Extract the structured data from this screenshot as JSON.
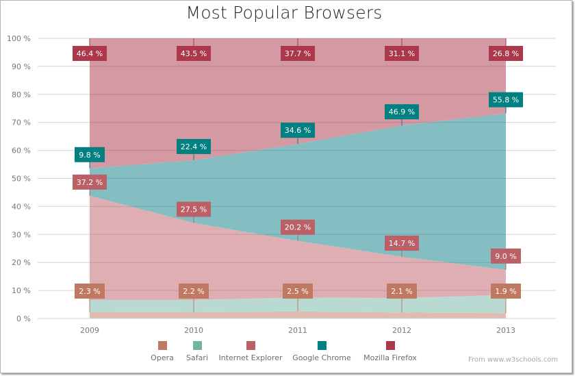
{
  "title": "Most Popular Browsers",
  "credit": "From www.w3schools.com",
  "y_ticks": [
    "0 %",
    "10 %",
    "20 %",
    "30 %",
    "40 %",
    "50 %",
    "60 %",
    "70 %",
    "80 %",
    "90 %",
    "100 %"
  ],
  "x_ticks": [
    "2009",
    "2010",
    "2011",
    "2012",
    "2013"
  ],
  "legend": [
    {
      "name": "Opera",
      "color": "#bf7862"
    },
    {
      "name": "Safari",
      "color": "#72b4a2"
    },
    {
      "name": "Internet Explorer",
      "color": "#bb6067"
    },
    {
      "name": "Google Chrome",
      "color": "#008080"
    },
    {
      "name": "Mozilla Firefox",
      "color": "#ab384b"
    }
  ],
  "chart_data": {
    "type": "area",
    "stacked": "100%",
    "title": "Most Popular Browsers",
    "xlabel": "",
    "ylabel": "",
    "ylim": [
      0,
      100
    ],
    "grid": true,
    "legend_position": "bottom",
    "categories": [
      "2009",
      "2010",
      "2011",
      "2012",
      "2013"
    ],
    "series": [
      {
        "name": "Opera",
        "color": "#bf7862",
        "values": [
          2.3,
          2.2,
          2.5,
          2.1,
          1.9
        ],
        "labels": [
          "2.3 %",
          "2.2 %",
          "2.5 %",
          "2.1 %",
          "1.9 %"
        ]
      },
      {
        "name": "Safari",
        "color": "#72b4a2",
        "values": [
          4.3,
          4.4,
          5.0,
          5.2,
          6.5
        ],
        "labels": []
      },
      {
        "name": "Internet Explorer",
        "color": "#bb6067",
        "values": [
          37.2,
          27.5,
          20.2,
          14.7,
          9.0
        ],
        "labels": [
          "37.2 %",
          "27.5 %",
          "20.2 %",
          "14.7 %",
          "9.0 %"
        ]
      },
      {
        "name": "Google Chrome",
        "color": "#008080",
        "values": [
          9.8,
          22.4,
          34.6,
          46.9,
          55.8
        ],
        "labels": [
          "9.8 %",
          "22.4 %",
          "34.6 %",
          "46.9 %",
          "55.8 %"
        ]
      },
      {
        "name": "Mozilla Firefox",
        "color": "#ab384b",
        "values": [
          46.4,
          43.5,
          37.7,
          31.1,
          26.8
        ],
        "labels": [
          "46.4 %",
          "43.5 %",
          "37.7 %",
          "31.1 %",
          "26.8 %"
        ]
      }
    ]
  }
}
